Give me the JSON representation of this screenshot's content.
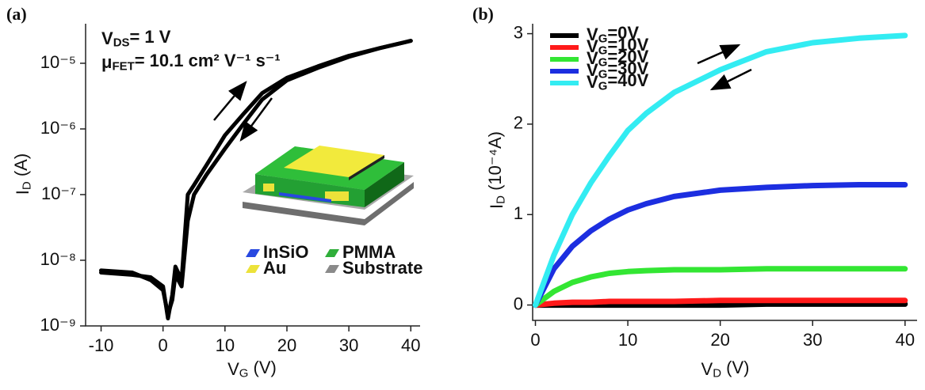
{
  "chart_data": [
    {
      "type": "line",
      "panel_label": "(a)",
      "log_y": true,
      "x_label": "VG (V)",
      "y_label": "ID (A)",
      "annotations": [
        "VDS= 1 V",
        "μFET= 10.1 cm² V⁻¹ s⁻¹"
      ],
      "xlim": [
        -12.5,
        41.5
      ],
      "xticks": [
        -10,
        0,
        10,
        20,
        30,
        40
      ],
      "ylim": [
        1e-09,
        4e-05
      ],
      "yticks": [
        {
          "value": 1e-09,
          "label": "10⁻⁹"
        },
        {
          "value": 1e-08,
          "label": "10⁻⁸"
        },
        {
          "value": 1e-07,
          "label": "10⁻⁷"
        },
        {
          "value": 1e-06,
          "label": "10⁻⁶"
        },
        {
          "value": 1e-05,
          "label": "10⁻⁵"
        }
      ],
      "x": [
        -10,
        -5,
        -2,
        0,
        0.8,
        1.5,
        2,
        3,
        4,
        5,
        7,
        10,
        13,
        16,
        20,
        25,
        30,
        35,
        40
      ],
      "series": [
        {
          "color": "#000000",
          "values": [
            6.5e-09,
            6e-09,
            5.5e-09,
            4e-09,
            1.3e-09,
            3e-09,
            8e-09,
            5e-09,
            1e-07,
            1.4e-07,
            2.8e-07,
            8e-07,
            1.7e-06,
            3.5e-06,
            6e-06,
            9e-06,
            1.3e-05,
            1.7e-05,
            2.2e-05
          ]
        },
        {
          "color": "#000000",
          "values": [
            7e-09,
            6.5e-09,
            5e-09,
            3.5e-09,
            1.5e-09,
            2.5e-09,
            6e-09,
            4e-09,
            4e-08,
            1e-07,
            2e-07,
            5e-07,
            1.2e-06,
            2.8e-06,
            5.5e-06,
            8.5e-06,
            1.25e-05,
            1.7e-05,
            2.2e-05
          ]
        }
      ],
      "inset_legend": [
        {
          "label": "InSiO",
          "color": "#2848e0"
        },
        {
          "label": "PMMA",
          "color": "#2fae3a"
        },
        {
          "label": "Au",
          "color": "#ece23a"
        },
        {
          "label": "Substrate",
          "color": "#8a8a8a"
        }
      ]
    },
    {
      "type": "line",
      "panel_label": "(b)",
      "log_y": false,
      "x_label": "VD (V)",
      "y_label": "ID (10⁻⁴A)",
      "xlim": [
        -0.3,
        41.3
      ],
      "xticks": [
        0,
        10,
        20,
        30,
        40
      ],
      "ylim": [
        -0.17,
        3.11
      ],
      "yticks": [
        0,
        1,
        2,
        3
      ],
      "legend": "upper left",
      "x": [
        0,
        2,
        4,
        6,
        8,
        10,
        12,
        15,
        20,
        25,
        30,
        35,
        40
      ],
      "series": [
        {
          "name": "VG=0V",
          "color": "#000000",
          "values": [
            0,
            0,
            0,
            0,
            0,
            0,
            0,
            0,
            0,
            0.01,
            0.01,
            0.01,
            0.01
          ]
        },
        {
          "name": "VG=10V",
          "color": "#ff1a1a",
          "values": [
            0,
            0.02,
            0.03,
            0.03,
            0.04,
            0.04,
            0.04,
            0.04,
            0.05,
            0.05,
            0.05,
            0.05,
            0.05
          ]
        },
        {
          "name": "VG=20V",
          "color": "#33e633",
          "values": [
            0,
            0.15,
            0.25,
            0.31,
            0.35,
            0.37,
            0.38,
            0.39,
            0.39,
            0.4,
            0.4,
            0.4,
            0.4
          ]
        },
        {
          "name": "VG=30V",
          "color": "#1c2ee0",
          "values": [
            0,
            0.4,
            0.65,
            0.82,
            0.95,
            1.05,
            1.12,
            1.2,
            1.27,
            1.3,
            1.32,
            1.33,
            1.33
          ]
        },
        {
          "name": "VG=40V",
          "color": "#33ecf2",
          "values": [
            0,
            0.55,
            1.0,
            1.35,
            1.65,
            1.93,
            2.12,
            2.35,
            2.6,
            2.8,
            2.9,
            2.95,
            2.98
          ]
        }
      ]
    }
  ]
}
